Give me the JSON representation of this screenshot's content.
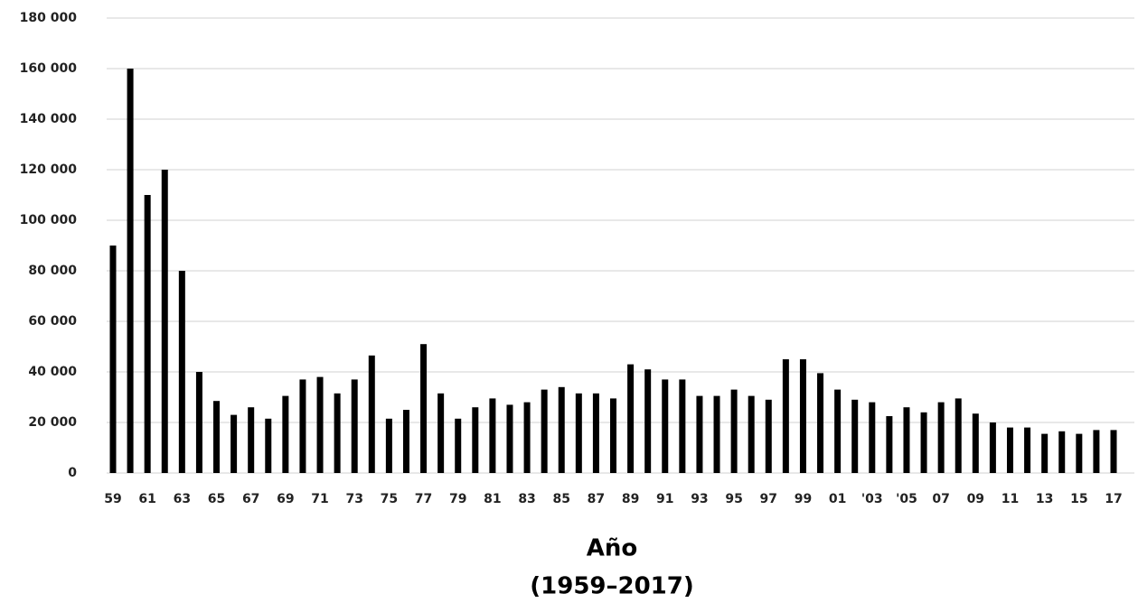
{
  "chart_data": {
    "type": "bar",
    "categories": [
      "59",
      null,
      "61",
      null,
      "63",
      null,
      "65",
      null,
      "67",
      null,
      "69",
      null,
      "71",
      null,
      "73",
      null,
      "75",
      null,
      "77",
      null,
      "79",
      null,
      "81",
      null,
      "83",
      null,
      "85",
      null,
      "87",
      null,
      "89",
      null,
      "91",
      null,
      "93",
      null,
      "95",
      null,
      "97",
      null,
      "99",
      null,
      "01",
      null,
      "'03",
      null,
      "'05",
      null,
      "07",
      null,
      "09",
      null,
      "11",
      null,
      "13",
      null,
      "15",
      null,
      "17"
    ],
    "values": [
      90000,
      160000,
      110000,
      120000,
      80000,
      40000,
      28500,
      23000,
      26000,
      21500,
      30500,
      37000,
      38000,
      31500,
      37000,
      46500,
      21500,
      25000,
      51000,
      31500,
      21500,
      26000,
      29500,
      27000,
      28000,
      33000,
      34000,
      31500,
      31500,
      29500,
      43000,
      41000,
      37000,
      37000,
      30500,
      30500,
      33000,
      30500,
      29000,
      45000,
      45000,
      39500,
      33000,
      29000,
      28000,
      22500,
      26000,
      24000,
      28000,
      29500,
      23500,
      20000,
      18000,
      18000,
      15500,
      16500,
      15500,
      17000,
      17000
    ],
    "color": "#000000",
    "xlabel": "Año",
    "xlabel_sub": "(1959–2017)",
    "ylim": [
      0,
      180000
    ],
    "yticks": [
      0,
      {
        "value": 20000,
        "label": "20 000"
      },
      {
        "value": 40000,
        "label": "40 000"
      },
      {
        "value": 60000,
        "label": "60 000"
      },
      {
        "value": 80000,
        "label": "80 000"
      },
      {
        "value": 100000,
        "label": "100 000"
      },
      {
        "value": 120000,
        "label": "120 000"
      },
      {
        "value": 140000,
        "label": "140 000"
      },
      {
        "value": 160000,
        "label": "160 000"
      },
      {
        "value": 180000,
        "label": "180 000"
      }
    ],
    "grid": true
  }
}
